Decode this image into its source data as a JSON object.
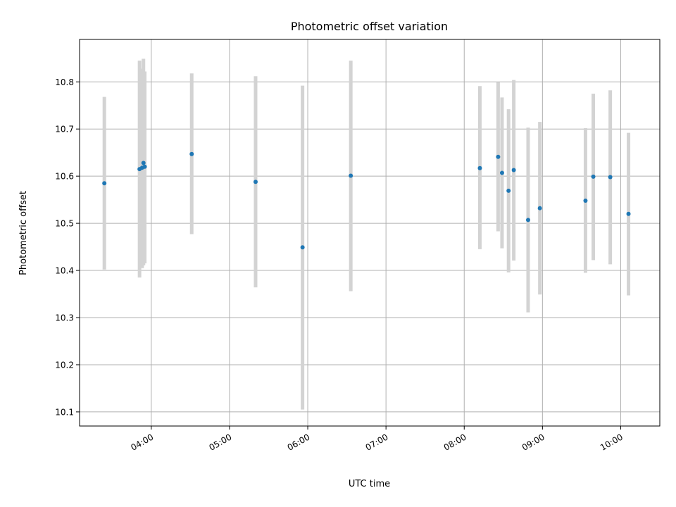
{
  "chart_data": {
    "type": "scatter",
    "title": "Photometric offset variation",
    "xlabel": "UTC time",
    "ylabel": "Photometric offset",
    "xlim": [
      "03:05",
      "10:30"
    ],
    "ylim": [
      10.07,
      10.89
    ],
    "x_ticks": [
      "04:00",
      "05:00",
      "06:00",
      "07:00",
      "08:00",
      "09:00",
      "10:00"
    ],
    "y_ticks": [
      10.1,
      10.2,
      10.3,
      10.4,
      10.5,
      10.6,
      10.7,
      10.8
    ],
    "grid": true,
    "colors": {
      "point": "#1f77b4",
      "errorbar": "#d3d3d3",
      "grid": "#b0b0b0"
    },
    "points": [
      {
        "x": "03:24",
        "y": 10.585,
        "ylow": 10.402,
        "yhigh": 10.768
      },
      {
        "x": "03:51",
        "y": 10.615,
        "ylow": 10.385,
        "yhigh": 10.845
      },
      {
        "x": "03:53",
        "y": 10.618,
        "ylow": 10.405,
        "yhigh": 10.828
      },
      {
        "x": "03:54",
        "y": 10.628,
        "ylow": 10.411,
        "yhigh": 10.849
      },
      {
        "x": "03:55",
        "y": 10.62,
        "ylow": 10.415,
        "yhigh": 10.822
      },
      {
        "x": "04:31",
        "y": 10.647,
        "ylow": 10.477,
        "yhigh": 10.818
      },
      {
        "x": "05:20",
        "y": 10.588,
        "ylow": 10.364,
        "yhigh": 10.812
      },
      {
        "x": "05:56",
        "y": 10.449,
        "ylow": 10.105,
        "yhigh": 10.792
      },
      {
        "x": "06:33",
        "y": 10.601,
        "ylow": 10.356,
        "yhigh": 10.845
      },
      {
        "x": "08:12",
        "y": 10.617,
        "ylow": 10.445,
        "yhigh": 10.791
      },
      {
        "x": "08:26",
        "y": 10.641,
        "ylow": 10.483,
        "yhigh": 10.799
      },
      {
        "x": "08:29",
        "y": 10.607,
        "ylow": 10.447,
        "yhigh": 10.767
      },
      {
        "x": "08:34",
        "y": 10.569,
        "ylow": 10.396,
        "yhigh": 10.742
      },
      {
        "x": "08:38",
        "y": 10.613,
        "ylow": 10.421,
        "yhigh": 10.804
      },
      {
        "x": "08:49",
        "y": 10.507,
        "ylow": 10.311,
        "yhigh": 10.703
      },
      {
        "x": "08:58",
        "y": 10.532,
        "ylow": 10.349,
        "yhigh": 10.715
      },
      {
        "x": "09:33",
        "y": 10.548,
        "ylow": 10.395,
        "yhigh": 10.702
      },
      {
        "x": "09:39",
        "y": 10.599,
        "ylow": 10.422,
        "yhigh": 10.775
      },
      {
        "x": "09:52",
        "y": 10.598,
        "ylow": 10.413,
        "yhigh": 10.782
      },
      {
        "x": "10:06",
        "y": 10.52,
        "ylow": 10.347,
        "yhigh": 10.692
      }
    ]
  }
}
